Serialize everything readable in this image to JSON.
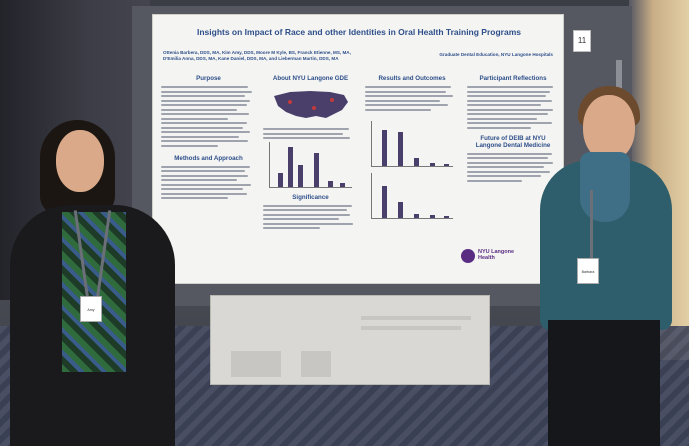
{
  "poster": {
    "title": "Insights on Impact of Race and other Identities in Oral Health Training Programs",
    "authors_line1": "Ottenia Barbera, DDS, MA, Kim Amy, DDS, Moore M Kyle, BS, Franck Etienne, MS, MA,",
    "authors_line2": "D'Emilia Anna, DDS, MA, Kane Daniel, DDS, MA, and Lieberman Martin, DDS, MA",
    "affiliation": "Graduate Dental Education, NYU Langone Hospitals",
    "board_number": "11",
    "sections": {
      "purpose": "Purpose",
      "about": "About NYU Langone GDE",
      "results": "Results and Outcomes",
      "reflections": "Participant Reflections",
      "methods": "Methods and Approach",
      "significance": "Significance",
      "future": "Future of DEIB at NYU Langone Dental Medicine"
    },
    "logo_text": "NYU Langone Health"
  },
  "people": {
    "left_badge": "Amy",
    "right_badge": "Barbara"
  },
  "colors": {
    "poster_heading": "#2e4f8a",
    "map_fill": "#4a3f6b",
    "left_jacket": "#1a1a1d",
    "right_sweater": "#2e5e6b"
  }
}
